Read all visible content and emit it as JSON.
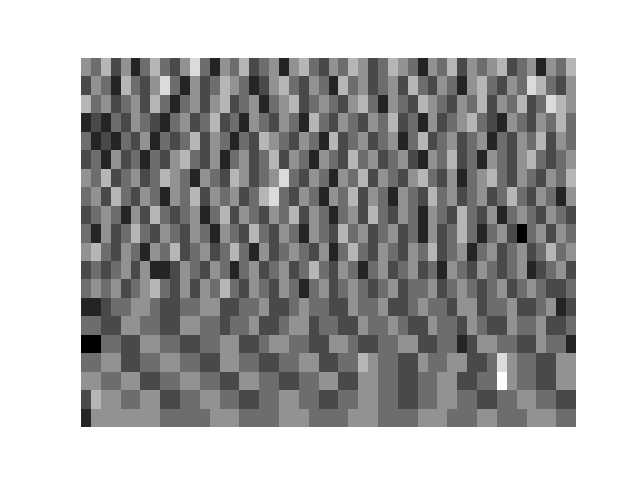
{
  "chart_data": {
    "type": "heatmap",
    "color": "gray",
    "tick_labels": false,
    "cells": [
      [
        6,
        5,
        7,
        4,
        6,
        3,
        5,
        7,
        5,
        4,
        6,
        8,
        5,
        3,
        6,
        5,
        7,
        4,
        5,
        6,
        3,
        6,
        7,
        5,
        4,
        6,
        5,
        7,
        6,
        4,
        5,
        7,
        6,
        5,
        3,
        6,
        5,
        7,
        4,
        6,
        5,
        6,
        7,
        4,
        5,
        6,
        3,
        6,
        5,
        7
      ],
      [
        4,
        6,
        5,
        3,
        7,
        5,
        4,
        6,
        8,
        5,
        3,
        6,
        4,
        5,
        7,
        6,
        5,
        3,
        4,
        6,
        7,
        5,
        4,
        6,
        5,
        3,
        7,
        5,
        6,
        4,
        5,
        6,
        4,
        7,
        5,
        4,
        6,
        5,
        3,
        6,
        7,
        5,
        4,
        6,
        5,
        8,
        7,
        5,
        4,
        6
      ],
      [
        7,
        5,
        6,
        4,
        5,
        6,
        4,
        7,
        5,
        3,
        5,
        6,
        4,
        6,
        7,
        4,
        5,
        6,
        3,
        5,
        6,
        7,
        4,
        5,
        6,
        5,
        4,
        6,
        7,
        5,
        3,
        6,
        5,
        4,
        7,
        6,
        5,
        4,
        6,
        5,
        7,
        4,
        6,
        5,
        7,
        4,
        5,
        8,
        7,
        6
      ],
      [
        3,
        4,
        3,
        5,
        4,
        6,
        5,
        4,
        3,
        5,
        6,
        4,
        5,
        7,
        4,
        5,
        3,
        6,
        5,
        4,
        6,
        5,
        3,
        7,
        5,
        4,
        6,
        5,
        4,
        6,
        5,
        7,
        4,
        5,
        3,
        6,
        4,
        5,
        6,
        7,
        5,
        4,
        3,
        6,
        5,
        4,
        6,
        5,
        7,
        5
      ],
      [
        5,
        3,
        4,
        3,
        5,
        4,
        6,
        3,
        5,
        4,
        5,
        7,
        4,
        6,
        5,
        3,
        5,
        4,
        7,
        6,
        5,
        4,
        6,
        5,
        3,
        7,
        4,
        5,
        6,
        4,
        5,
        6,
        3,
        5,
        7,
        4,
        5,
        6,
        4,
        5,
        6,
        3,
        5,
        4,
        6,
        5,
        7,
        4,
        6,
        5
      ],
      [
        4,
        5,
        3,
        6,
        4,
        5,
        3,
        5,
        4,
        6,
        7,
        5,
        4,
        6,
        3,
        5,
        6,
        4,
        5,
        7,
        4,
        6,
        5,
        3,
        6,
        5,
        4,
        7,
        5,
        6,
        4,
        5,
        6,
        4,
        3,
        6,
        5,
        7,
        4,
        5,
        3,
        6,
        5,
        4,
        6,
        7,
        5,
        4,
        5,
        6
      ],
      [
        6,
        5,
        7,
        4,
        5,
        6,
        4,
        5,
        7,
        6,
        5,
        3,
        6,
        5,
        4,
        7,
        6,
        4,
        5,
        6,
        8,
        5,
        4,
        6,
        5,
        3,
        6,
        5,
        7,
        4,
        6,
        5,
        4,
        6,
        7,
        5,
        4,
        6,
        3,
        5,
        6,
        7,
        5,
        4,
        6,
        5,
        4,
        6,
        5,
        7
      ],
      [
        5,
        6,
        4,
        7,
        5,
        4,
        6,
        5,
        3,
        6,
        5,
        7,
        4,
        6,
        5,
        6,
        4,
        5,
        7,
        8,
        5,
        4,
        6,
        5,
        3,
        6,
        5,
        7,
        4,
        6,
        5,
        3,
        6,
        5,
        4,
        7,
        5,
        6,
        4,
        5,
        6,
        4,
        5,
        7,
        5,
        4,
        6,
        5,
        3,
        6
      ],
      [
        4,
        5,
        6,
        5,
        3,
        6,
        4,
        7,
        5,
        4,
        5,
        6,
        3,
        5,
        7,
        4,
        6,
        5,
        4,
        6,
        5,
        7,
        4,
        6,
        5,
        3,
        5,
        6,
        4,
        7,
        5,
        4,
        6,
        5,
        3,
        6,
        5,
        4,
        7,
        5,
        4,
        6,
        3,
        5,
        6,
        5,
        4,
        6,
        5,
        4
      ],
      [
        5,
        3,
        6,
        4,
        5,
        7,
        5,
        4,
        6,
        5,
        4,
        6,
        5,
        3,
        6,
        5,
        4,
        7,
        5,
        4,
        6,
        5,
        3,
        6,
        5,
        4,
        7,
        5,
        6,
        4,
        5,
        6,
        4,
        5,
        3,
        6,
        4,
        5,
        7,
        5,
        3,
        5,
        6,
        4,
        2,
        5,
        6,
        4,
        6,
        5
      ],
      [
        6,
        7,
        5,
        4,
        6,
        5,
        3,
        6,
        5,
        7,
        4,
        5,
        6,
        4,
        5,
        7,
        5,
        3,
        6,
        4,
        5,
        6,
        5,
        4,
        6,
        3,
        5,
        7,
        5,
        4,
        6,
        5,
        4,
        6,
        5,
        7,
        4,
        5,
        6,
        3,
        5,
        6,
        4,
        5,
        6,
        4,
        5,
        7,
        5,
        6
      ],
      [
        4,
        5,
        4,
        5,
        6,
        4,
        6,
        3,
        3,
        4,
        6,
        5,
        4,
        6,
        5,
        3,
        5,
        6,
        4,
        5,
        6,
        4,
        5,
        7,
        5,
        4,
        6,
        5,
        3,
        5,
        6,
        4,
        5,
        6,
        4,
        5,
        3,
        6,
        5,
        4,
        6,
        5,
        4,
        5,
        6,
        3,
        4,
        5,
        6,
        4
      ],
      [
        5,
        6,
        5,
        6,
        4,
        5,
        6,
        7,
        5,
        4,
        6,
        4,
        6,
        5,
        7,
        5,
        4,
        6,
        5,
        4,
        6,
        5,
        3,
        5,
        6,
        4,
        5,
        6,
        5,
        4,
        5,
        6,
        4,
        5,
        5,
        6,
        4,
        5,
        6,
        5,
        4,
        5,
        6,
        4,
        5,
        6,
        5,
        4,
        4,
        5
      ],
      [
        3,
        3,
        4,
        5,
        5,
        6,
        6,
        5,
        4,
        4,
        5,
        5,
        6,
        6,
        4,
        4,
        5,
        5,
        6,
        4,
        4,
        5,
        6,
        5,
        5,
        4,
        4,
        6,
        5,
        5,
        6,
        4,
        4,
        5,
        6,
        5,
        5,
        4,
        6,
        6,
        4,
        5,
        5,
        6,
        4,
        4,
        5,
        6,
        3,
        4
      ],
      [
        5,
        5,
        4,
        4,
        6,
        6,
        5,
        5,
        4,
        4,
        6,
        6,
        5,
        5,
        4,
        5,
        5,
        6,
        4,
        4,
        5,
        6,
        6,
        4,
        5,
        5,
        4,
        4,
        6,
        5,
        5,
        6,
        5,
        4,
        4,
        6,
        5,
        5,
        4,
        6,
        5,
        4,
        4,
        6,
        5,
        5,
        6,
        4,
        4,
        5
      ],
      [
        2,
        2,
        5,
        5,
        4,
        4,
        6,
        6,
        5,
        5,
        4,
        4,
        5,
        5,
        6,
        6,
        4,
        4,
        5,
        6,
        6,
        5,
        5,
        4,
        4,
        6,
        6,
        5,
        4,
        4,
        5,
        5,
        6,
        6,
        4,
        4,
        5,
        5,
        3,
        4,
        6,
        6,
        5,
        5,
        4,
        4,
        6,
        5,
        5,
        3
      ],
      [
        5,
        5,
        6,
        6,
        4,
        4,
        5,
        5,
        6,
        6,
        5,
        5,
        4,
        4,
        6,
        6,
        5,
        5,
        4,
        4,
        5,
        5,
        6,
        6,
        4,
        4,
        5,
        5,
        7,
        6,
        5,
        5,
        4,
        4,
        6,
        5,
        5,
        6,
        6,
        4,
        4,
        5,
        8,
        6,
        5,
        5,
        4,
        4,
        6,
        6
      ],
      [
        6,
        6,
        5,
        5,
        6,
        6,
        4,
        4,
        5,
        5,
        6,
        6,
        5,
        5,
        4,
        4,
        6,
        6,
        5,
        5,
        4,
        4,
        5,
        5,
        6,
        6,
        4,
        4,
        6,
        6,
        5,
        5,
        4,
        4,
        5,
        5,
        6,
        6,
        4,
        4,
        5,
        5,
        9,
        6,
        5,
        5,
        4,
        4,
        6,
        6
      ],
      [
        4,
        7,
        6,
        6,
        5,
        5,
        6,
        6,
        4,
        4,
        5,
        5,
        6,
        6,
        5,
        5,
        4,
        4,
        5,
        5,
        6,
        6,
        5,
        5,
        4,
        4,
        5,
        5,
        6,
        6,
        5,
        5,
        4,
        4,
        5,
        5,
        6,
        6,
        5,
        5,
        4,
        4,
        5,
        5,
        6,
        6,
        5,
        5,
        4,
        4
      ],
      [
        3,
        6,
        6,
        6,
        6,
        6,
        6,
        6,
        5,
        5,
        5,
        5,
        5,
        6,
        6,
        6,
        5,
        5,
        5,
        5,
        6,
        6,
        6,
        5,
        5,
        5,
        5,
        6,
        6,
        6,
        5,
        5,
        5,
        5,
        6,
        6,
        6,
        5,
        5,
        5,
        6,
        6,
        5,
        5,
        5,
        6,
        6,
        6,
        5,
        5
      ]
    ]
  }
}
